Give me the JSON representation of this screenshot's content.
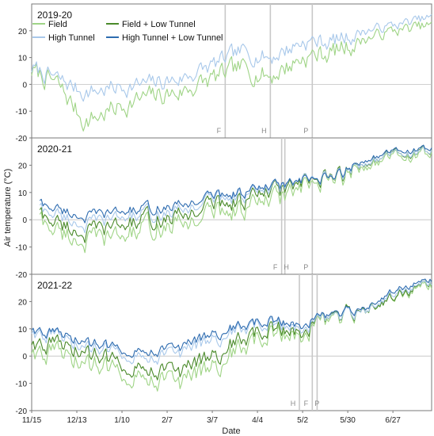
{
  "figure": {
    "ylabel": "Air temperature (°C)",
    "xlabel": "Date",
    "x_tick_labels": [
      "11/15",
      "12/13",
      "1/10",
      "2/7",
      "3/7",
      "4/4",
      "5/2",
      "5/30",
      "6/27"
    ],
    "y_tick_labels": [
      "-20",
      "-10",
      "0",
      "10",
      "20"
    ],
    "legend": {
      "field": "Field",
      "field_lt": "Field + Low Tunnel",
      "high_tunnel": "High Tunnel",
      "ht_lt": "High Tunnel + Low Tunnel"
    },
    "colors": {
      "field": "#9fd486",
      "field_lt": "#4a8a2a",
      "high_tunnel": "#a8c8ea",
      "ht_lt": "#2e6cb0",
      "event_line": "#c8c8c8",
      "zero_line": "#c0c0c0"
    }
  },
  "chart_data": [
    {
      "type": "line",
      "title": "2019-20",
      "x_type": "date",
      "x_range": [
        "11/15",
        "7/21"
      ],
      "ylim": [
        -20,
        30
      ],
      "events": [
        {
          "label": "F",
          "x": "3/15"
        },
        {
          "label": "H",
          "x": "4/12"
        },
        {
          "label": "P",
          "x": "5/8"
        }
      ],
      "series": [
        {
          "name": "Field",
          "color": "#9fd486",
          "key_dates": [
            "11/15",
            "12/1",
            "12/18",
            "1/10",
            "1/25",
            "2/15",
            "3/7",
            "3/25",
            "4/12",
            "5/2",
            "5/20",
            "6/10",
            "6/27",
            "7/21"
          ],
          "values": [
            5,
            0,
            -14,
            -8,
            -5,
            -3,
            2,
            6,
            3,
            10,
            12,
            17,
            20,
            22
          ]
        },
        {
          "name": "High Tunnel",
          "color": "#a8c8ea",
          "key_dates": [
            "11/15",
            "12/1",
            "12/18",
            "1/10",
            "1/25",
            "2/15",
            "3/7",
            "3/25",
            "4/12",
            "5/2",
            "5/20",
            "6/10",
            "6/27",
            "7/21"
          ],
          "values": [
            6,
            2,
            -3,
            -1,
            0,
            2,
            7,
            12,
            10,
            16,
            16,
            20,
            22,
            25
          ]
        }
      ]
    },
    {
      "type": "line",
      "title": "2020-21",
      "x_type": "date",
      "x_range": [
        "11/15",
        "7/21"
      ],
      "ylim": [
        -20,
        30
      ],
      "events": [
        {
          "label": "F",
          "x": "4/19"
        },
        {
          "label": "H",
          "x": "4/21"
        },
        {
          "label": "P",
          "x": "5/8"
        }
      ],
      "series": [
        {
          "name": "Field",
          "color": "#9fd486",
          "key_dates": [
            "11/20",
            "12/1",
            "12/18",
            "1/10",
            "1/25",
            "2/15",
            "3/7",
            "3/25",
            "4/12",
            "5/2",
            "5/20",
            "6/10",
            "6/27",
            "7/21"
          ],
          "values": [
            0,
            -4,
            -8,
            -6,
            -3,
            -2,
            3,
            4,
            7,
            11,
            14,
            20,
            23,
            24
          ]
        },
        {
          "name": "Field + Low Tunnel",
          "color": "#4a8a2a",
          "key_dates": [
            "11/20",
            "12/1",
            "12/18",
            "1/10",
            "1/25",
            "2/15",
            "3/7",
            "3/25",
            "4/12",
            "5/2",
            "5/20",
            "6/10",
            "6/27",
            "7/21"
          ],
          "values": [
            2,
            -1,
            -5,
            -2,
            0,
            1,
            6,
            7,
            10,
            13,
            15,
            21,
            24,
            25
          ]
        },
        {
          "name": "High Tunnel",
          "color": "#a8c8ea",
          "key_dates": [
            "11/20",
            "12/1",
            "12/18",
            "1/10",
            "1/25",
            "2/15",
            "3/7",
            "3/25",
            "4/12",
            "5/2",
            "5/20",
            "6/10",
            "6/27",
            "7/21"
          ],
          "values": [
            4,
            2,
            -2,
            1,
            2,
            3,
            8,
            9,
            11,
            14,
            15,
            21,
            24,
            25
          ]
        },
        {
          "name": "High Tunnel + Low Tunnel",
          "color": "#2e6cb0",
          "key_dates": [
            "11/20",
            "12/1",
            "12/18",
            "1/10",
            "1/25",
            "2/15",
            "3/7",
            "3/25",
            "4/12",
            "5/2",
            "5/20",
            "6/10",
            "6/27",
            "7/21"
          ],
          "values": [
            6,
            4,
            1,
            3,
            4,
            5,
            9,
            10,
            12,
            14,
            15,
            22,
            25,
            26
          ]
        }
      ]
    },
    {
      "type": "line",
      "title": "2021-22",
      "x_type": "date",
      "x_range": [
        "11/15",
        "7/21"
      ],
      "ylim": [
        -20,
        30
      ],
      "events": [
        {
          "label": "H",
          "x": "4/30"
        },
        {
          "label": "F",
          "x": "5/8"
        },
        {
          "label": "P",
          "x": "5/11"
        }
      ],
      "series": [
        {
          "name": "Field",
          "color": "#9fd486",
          "key_dates": [
            "11/15",
            "12/1",
            "12/18",
            "1/10",
            "1/25",
            "2/15",
            "3/7",
            "3/25",
            "4/12",
            "5/2",
            "5/20",
            "6/10",
            "6/27",
            "7/21"
          ],
          "values": [
            2,
            1,
            -3,
            -5,
            -7,
            -10,
            -4,
            3,
            8,
            9,
            13,
            16,
            22,
            26
          ]
        },
        {
          "name": "Field + Low Tunnel",
          "color": "#4a8a2a",
          "key_dates": [
            "11/15",
            "12/1",
            "12/18",
            "1/10",
            "1/25",
            "2/15",
            "3/7",
            "3/25",
            "4/12",
            "5/2",
            "5/20",
            "6/10",
            "6/27",
            "7/21"
          ],
          "values": [
            5,
            4,
            1,
            -2,
            -4,
            -6,
            0,
            6,
            10,
            10,
            14,
            16,
            22,
            27
          ]
        },
        {
          "name": "High Tunnel",
          "color": "#a8c8ea",
          "key_dates": [
            "11/15",
            "12/1",
            "12/18",
            "1/10",
            "1/25",
            "2/15",
            "3/7",
            "3/25",
            "4/12",
            "5/2",
            "5/20",
            "6/10",
            "6/27",
            "7/21"
          ],
          "values": [
            9,
            7,
            3,
            2,
            0,
            1,
            6,
            10,
            12,
            11,
            14,
            16,
            23,
            27
          ]
        },
        {
          "name": "High Tunnel + Low Tunnel",
          "color": "#2e6cb0",
          "key_dates": [
            "11/15",
            "12/1",
            "12/18",
            "1/10",
            "1/25",
            "2/15",
            "3/7",
            "3/25",
            "4/12",
            "5/2",
            "5/20",
            "6/10",
            "6/27",
            "7/21"
          ],
          "values": [
            10,
            8,
            5,
            3,
            2,
            3,
            8,
            11,
            13,
            12,
            15,
            17,
            24,
            28
          ]
        }
      ]
    }
  ]
}
